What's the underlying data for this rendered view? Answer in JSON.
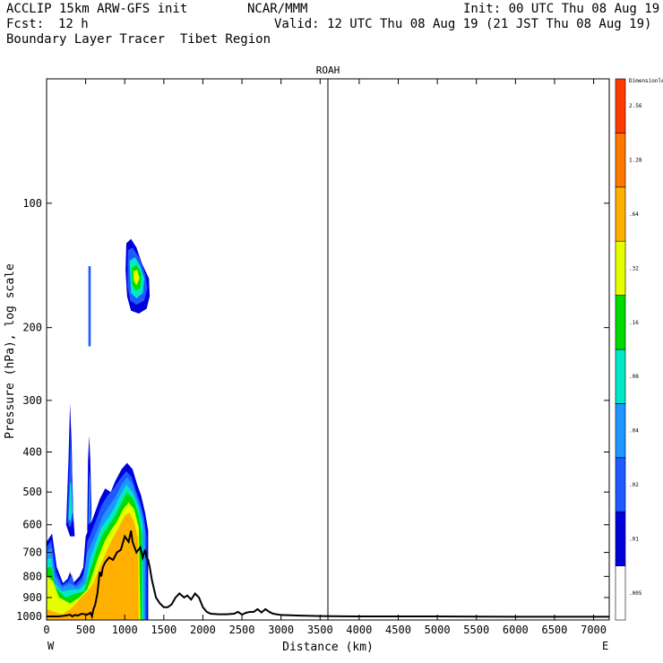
{
  "header": {
    "model": "ACCLIP 15km ARW-GFS init",
    "org": "NCAR/MMM",
    "init": "Init: 00 UTC Thu 08 Aug 19",
    "fcst_label": "Fcst:",
    "fcst_value": "12 h",
    "valid": "Valid: 12 UTC Thu 08 Aug 19 (21 JST Thu 08 Aug 19)",
    "product": "Boundary Layer Tracer  Tibet Region"
  },
  "chart_data": {
    "type": "heatmap",
    "title": "ROAH",
    "xlabel": "Distance (km)",
    "ylabel": "Pressure (hPa), log scale",
    "x_ticks": [
      "0",
      "500",
      "1000",
      "1500",
      "2000",
      "2500",
      "3000",
      "3500",
      "4000",
      "4500",
      "5000",
      "5500",
      "6000",
      "6500",
      "7000"
    ],
    "x_tick_values": [
      0,
      500,
      1000,
      1500,
      2000,
      2500,
      3000,
      3500,
      4000,
      4500,
      5000,
      5500,
      6000,
      6500,
      7000
    ],
    "y_ticks": [
      "100",
      "200",
      "300",
      "400",
      "500",
      "600",
      "700",
      "800",
      "900",
      "1000"
    ],
    "y_tick_values": [
      100,
      200,
      300,
      400,
      500,
      600,
      700,
      800,
      900,
      1000
    ],
    "xlim": [
      0,
      7200
    ],
    "ylim": [
      1020,
      50
    ],
    "y_scale": "log",
    "x_end_labels": {
      "left": "W",
      "right": "E"
    },
    "vertical_marker_km": 3600,
    "colorbar": {
      "label_top": "Dimensionless",
      "levels": [
        ".005",
        ".01",
        ".02",
        ".04",
        ".08",
        ".16",
        ".32",
        ".64",
        "1.28",
        "2.56"
      ],
      "colors": [
        "#ffffff",
        "#0000dd",
        "#1e5aff",
        "#1e96ff",
        "#00e8c8",
        "#00dc00",
        "#e6ff00",
        "#ffb000",
        "#ff7800",
        "#ff3c00"
      ]
    },
    "terrain": {
      "x_km": [
        0,
        150,
        250,
        300,
        330,
        360,
        400,
        450,
        520,
        560,
        580,
        600,
        620,
        650,
        680,
        700,
        720,
        750,
        800,
        850,
        900,
        950,
        1000,
        1050,
        1080,
        1100,
        1150,
        1200,
        1230,
        1260,
        1280,
        1300,
        1320,
        1350,
        1400,
        1450,
        1500,
        1550,
        1600,
        1650,
        1700,
        1730,
        1760,
        1800,
        1850,
        1900,
        1950,
        2000,
        2050,
        2100,
        2200,
        2300,
        2400,
        2450,
        2500,
        2550,
        2600,
        2650,
        2700,
        2750,
        2800,
        2850,
        2900,
        3000,
        3200,
        3500,
        4000,
        5000,
        6000,
        7200
      ],
      "p_hpa": [
        1000,
        1000,
        995,
        990,
        1000,
        992,
        995,
        985,
        990,
        980,
        1000,
        960,
        940,
        880,
        780,
        800,
        760,
        740,
        720,
        730,
        700,
        690,
        640,
        660,
        620,
        660,
        700,
        680,
        720,
        690,
        720,
        730,
        760,
        820,
        900,
        930,
        950,
        950,
        935,
        900,
        880,
        890,
        900,
        890,
        910,
        880,
        900,
        950,
        975,
        985,
        988,
        988,
        985,
        975,
        990,
        980,
        975,
        975,
        960,
        978,
        960,
        975,
        985,
        992,
        995,
        998,
        1000,
        1000,
        1002,
        1002
      ]
    },
    "tracer_levels_shown": {
      "surface_layer": "0-1300 km, 1000-450 hPa, peak > .64",
      "upper_blob": "1030-1320 km, 130-180 hPa, peak .32",
      "thin_column": "550 km, 140-220 hPa, .02"
    }
  }
}
